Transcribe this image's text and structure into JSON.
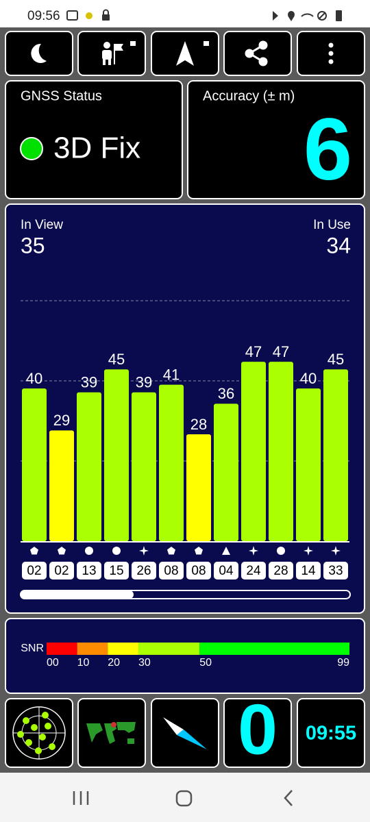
{
  "status_bar": {
    "time": "09:56"
  },
  "gnss_status": {
    "title": "GNSS Status",
    "fix": "3D Fix"
  },
  "accuracy": {
    "title": "Accuracy (± m)",
    "value": 6
  },
  "satellites": {
    "in_view_label": "In View",
    "in_view": 35,
    "in_use_label": "In Use",
    "in_use": 34
  },
  "chart_data": {
    "type": "bar",
    "categories": [
      "02",
      "02",
      "13",
      "15",
      "26",
      "08",
      "08",
      "04",
      "24",
      "28",
      "14",
      "33"
    ],
    "values": [
      40,
      29,
      39,
      45,
      39,
      41,
      28,
      36,
      47,
      47,
      40,
      45
    ],
    "colors": [
      "#aaff00",
      "#ffff00",
      "#aaff00",
      "#aaff00",
      "#aaff00",
      "#aaff00",
      "#ffff00",
      "#aaff00",
      "#aaff00",
      "#aaff00",
      "#aaff00",
      "#aaff00"
    ],
    "ylim": [
      0,
      70
    ],
    "yticks": [
      21,
      42,
      63
    ],
    "grid": true
  },
  "snr_scale": {
    "title": "SNR",
    "ticks": [
      {
        "value": 0,
        "label": "00"
      },
      10,
      20,
      30,
      50,
      99
    ],
    "colors": [
      "#ff0000",
      "#ff8c00",
      "#ffff00",
      "#aaff00",
      "#00ff00"
    ]
  },
  "bottom": {
    "speed": 0,
    "time": "09:55"
  }
}
